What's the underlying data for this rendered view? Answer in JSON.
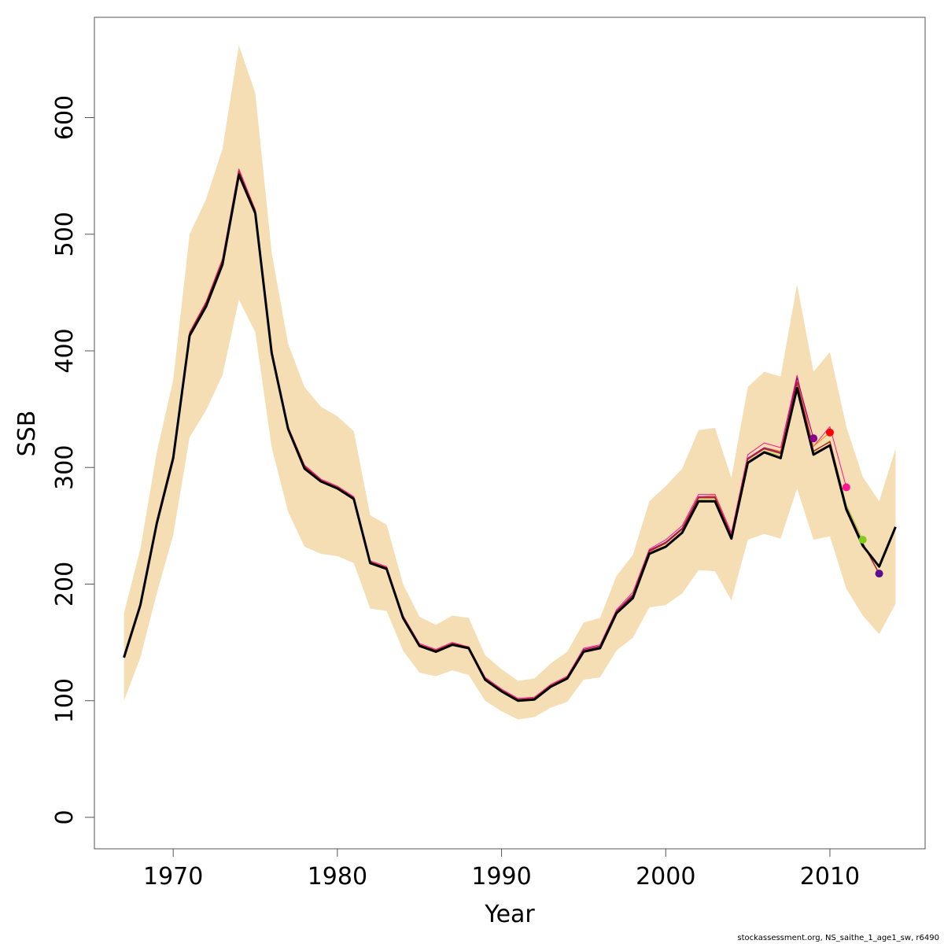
{
  "chart_data": {
    "type": "line",
    "xlabel": "Year",
    "ylabel": "SSB",
    "xlim": [
      1965.2,
      2015.8
    ],
    "ylim": [
      -27,
      686
    ],
    "x_ticks": [
      1970,
      1980,
      1990,
      2000,
      2010
    ],
    "y_ticks": [
      0,
      100,
      200,
      300,
      400,
      500,
      600
    ],
    "grid": false,
    "band_color": "#F5DEB3",
    "years": [
      1967,
      1968,
      1969,
      1970,
      1971,
      1972,
      1973,
      1974,
      1975,
      1976,
      1977,
      1978,
      1979,
      1980,
      1981,
      1982,
      1983,
      1984,
      1985,
      1986,
      1987,
      1988,
      1989,
      1990,
      1991,
      1992,
      1993,
      1994,
      1995,
      1996,
      1997,
      1998,
      1999,
      2000,
      2001,
      2002,
      2003,
      2004,
      2005,
      2006,
      2007,
      2008,
      2009,
      2010,
      2011,
      2012,
      2013,
      2014
    ],
    "band_upper": [
      175,
      230,
      313,
      375,
      500,
      530,
      573,
      662,
      621,
      484,
      406,
      369,
      352,
      344,
      331,
      259,
      251,
      200,
      172,
      165,
      173,
      171,
      139,
      127,
      117,
      119,
      132,
      142,
      167,
      171,
      207,
      225,
      271,
      284,
      299,
      332,
      334,
      291,
      369,
      382,
      378,
      457,
      382,
      399,
      335,
      292,
      271,
      316
    ],
    "band_lower": [
      100,
      137,
      192,
      242,
      326,
      349,
      379,
      444,
      416,
      317,
      262,
      232,
      226,
      224,
      218,
      179,
      177,
      143,
      124,
      121,
      126,
      122,
      100,
      91,
      84,
      86,
      94,
      99,
      118,
      120,
      143,
      154,
      180,
      182,
      192,
      212,
      211,
      186,
      238,
      243,
      239,
      282,
      238,
      241,
      196,
      173,
      157,
      183
    ],
    "series": [
      {
        "color": "#000000",
        "width": 3,
        "x": [
          1967,
          1968,
          1969,
          1970,
          1971,
          1972,
          1973,
          1974,
          1975,
          1976,
          1977,
          1978,
          1979,
          1980,
          1981,
          1982,
          1983,
          1984,
          1985,
          1986,
          1987,
          1988,
          1989,
          1990,
          1991,
          1992,
          1993,
          1994,
          1995,
          1996,
          1997,
          1998,
          1999,
          2000,
          2001,
          2002,
          2003,
          2004,
          2005,
          2006,
          2007,
          2008,
          2009,
          2010,
          2011,
          2012,
          2013,
          2014
        ],
        "values": [
          137,
          182,
          252,
          308,
          413,
          438,
          474,
          551,
          518,
          398,
          333,
          299,
          288,
          282,
          273,
          218,
          213,
          171,
          147,
          142,
          148,
          145,
          118,
          108,
          100,
          101,
          112,
          119,
          142,
          145,
          175,
          188,
          226,
          232,
          244,
          271,
          271,
          239,
          304,
          313,
          308,
          368,
          311,
          319,
          264,
          233,
          215,
          249
        ]
      },
      {
        "color": "#B22222",
        "width": 1.5,
        "x": [
          1967,
          1968,
          1969,
          1970,
          1971,
          1972,
          1973,
          1974,
          1975,
          1976,
          1977,
          1978,
          1979,
          1980,
          1981,
          1982,
          1983,
          1984,
          1985,
          1986,
          1987,
          1988,
          1989,
          1990,
          1991,
          1992,
          1993,
          1994,
          1995,
          1996,
          1997,
          1998,
          1999,
          2000,
          2001,
          2002,
          2003,
          2004,
          2005,
          2006,
          2007,
          2008,
          2009,
          2010,
          2011,
          2012,
          2013
        ],
        "values": [
          138,
          183,
          253,
          310,
          415,
          441,
          477,
          554,
          520,
          400,
          334,
          301,
          289,
          283,
          274,
          219,
          214,
          172,
          148,
          143,
          149,
          146,
          119,
          109,
          101,
          102,
          113,
          120,
          143,
          146,
          176,
          190,
          228,
          235,
          247,
          274,
          274,
          241,
          307,
          316,
          312,
          373,
          314,
          322,
          266,
          235,
          209
        ]
      },
      {
        "color": "#FF1493",
        "width": 1,
        "x": [
          1967,
          1968,
          1969,
          1970,
          1971,
          1972,
          1973,
          1974,
          1975,
          1976,
          1977,
          1978,
          1979,
          1980,
          1981,
          1982,
          1983,
          1984,
          1985,
          1986,
          1987,
          1988,
          1989,
          1990,
          1991,
          1992,
          1993,
          1994,
          1995,
          1996,
          1997,
          1998,
          1999,
          2000,
          2001,
          2002,
          2003,
          2004,
          2005,
          2006,
          2007,
          2008,
          2009,
          2010,
          2011
        ],
        "values": [
          139,
          184,
          255,
          311,
          416,
          442,
          479,
          556,
          521,
          401,
          335,
          302,
          290,
          284,
          275,
          220,
          215,
          173,
          149,
          144,
          150,
          146,
          120,
          110,
          102,
          103,
          114,
          121,
          145,
          148,
          178,
          193,
          230,
          238,
          250,
          277,
          277,
          244,
          311,
          321,
          317,
          379,
          318,
          335,
          283
        ]
      },
      {
        "color": "#FF8C00",
        "width": 1,
        "x": [
          1967,
          1968,
          1969,
          1970,
          1971,
          1972,
          1973,
          1974,
          1975,
          1976,
          1977,
          1978,
          1979,
          1980,
          1981,
          1982,
          1983,
          1984,
          1985,
          1986,
          1987,
          1988,
          1989,
          1990,
          1991,
          1992,
          1993,
          1994,
          1995,
          1996,
          1997,
          1998,
          1999,
          2000,
          2001,
          2002,
          2003,
          2004,
          2005,
          2006,
          2007,
          2008,
          2009,
          2010
        ],
        "values": [
          138,
          183,
          254,
          310,
          415,
          440,
          476,
          553,
          520,
          400,
          334,
          300,
          289,
          283,
          274,
          219,
          214,
          172,
          148,
          143,
          149,
          146,
          119,
          109,
          101,
          102,
          113,
          120,
          144,
          147,
          177,
          191,
          229,
          236,
          248,
          275,
          276,
          242,
          308,
          317,
          314,
          375,
          318,
          330
        ]
      },
      {
        "color": "#9ACD32",
        "width": 1,
        "x": [
          1967,
          1968,
          1969,
          1970,
          1971,
          1972,
          1973,
          1974,
          1975,
          1976,
          1977,
          1978,
          1979,
          1980,
          1981,
          1982,
          1983,
          1984,
          1985,
          1986,
          1987,
          1988,
          1989,
          1990,
          1991,
          1992,
          1993,
          1994,
          1995,
          1996,
          1997,
          1998,
          1999,
          2000,
          2001,
          2002,
          2003,
          2004,
          2005,
          2006,
          2007,
          2008,
          2009,
          2010,
          2011,
          2012
        ],
        "values": [
          137,
          182,
          253,
          309,
          414,
          439,
          475,
          552,
          519,
          399,
          333,
          300,
          288,
          282,
          273,
          218,
          213,
          171,
          147,
          142,
          148,
          145,
          118,
          108,
          100,
          101,
          112,
          119,
          143,
          146,
          176,
          189,
          227,
          233,
          245,
          272,
          272,
          240,
          305,
          314,
          310,
          370,
          313,
          323,
          268,
          238
        ]
      },
      {
        "color": "#8B008B",
        "width": 1,
        "x": [
          1967,
          1968,
          1969,
          1970,
          1971,
          1972,
          1973,
          1974,
          1975,
          1976,
          1977,
          1978,
          1979,
          1980,
          1981,
          1982,
          1983,
          1984,
          1985,
          1986,
          1987,
          1988,
          1989,
          1990,
          1991,
          1992,
          1993,
          1994,
          1995,
          1996,
          1997,
          1998,
          1999,
          2000,
          2001,
          2002,
          2003,
          2004,
          2005,
          2006,
          2007,
          2008,
          2009
        ],
        "values": [
          138,
          183,
          254,
          310,
          415,
          440,
          477,
          554,
          520,
          400,
          334,
          301,
          289,
          283,
          274,
          219,
          214,
          172,
          148,
          143,
          149,
          146,
          119,
          109,
          101,
          102,
          113,
          120,
          144,
          147,
          177,
          191,
          229,
          236,
          248,
          275,
          275,
          242,
          308,
          317,
          313,
          377,
          325
        ]
      }
    ],
    "endpoints": [
      {
        "x": 2009,
        "y": 325,
        "color": "#8B008B"
      },
      {
        "x": 2010,
        "y": 330,
        "color": "#FF0000"
      },
      {
        "x": 2011,
        "y": 283,
        "color": "#FF1493"
      },
      {
        "x": 2012,
        "y": 238,
        "color": "#7FCC1A"
      },
      {
        "x": 2013,
        "y": 209,
        "color": "#5B0A91"
      }
    ]
  },
  "footer": "stockassessment.org, NS_saithe_1_age1_sw, r6490"
}
